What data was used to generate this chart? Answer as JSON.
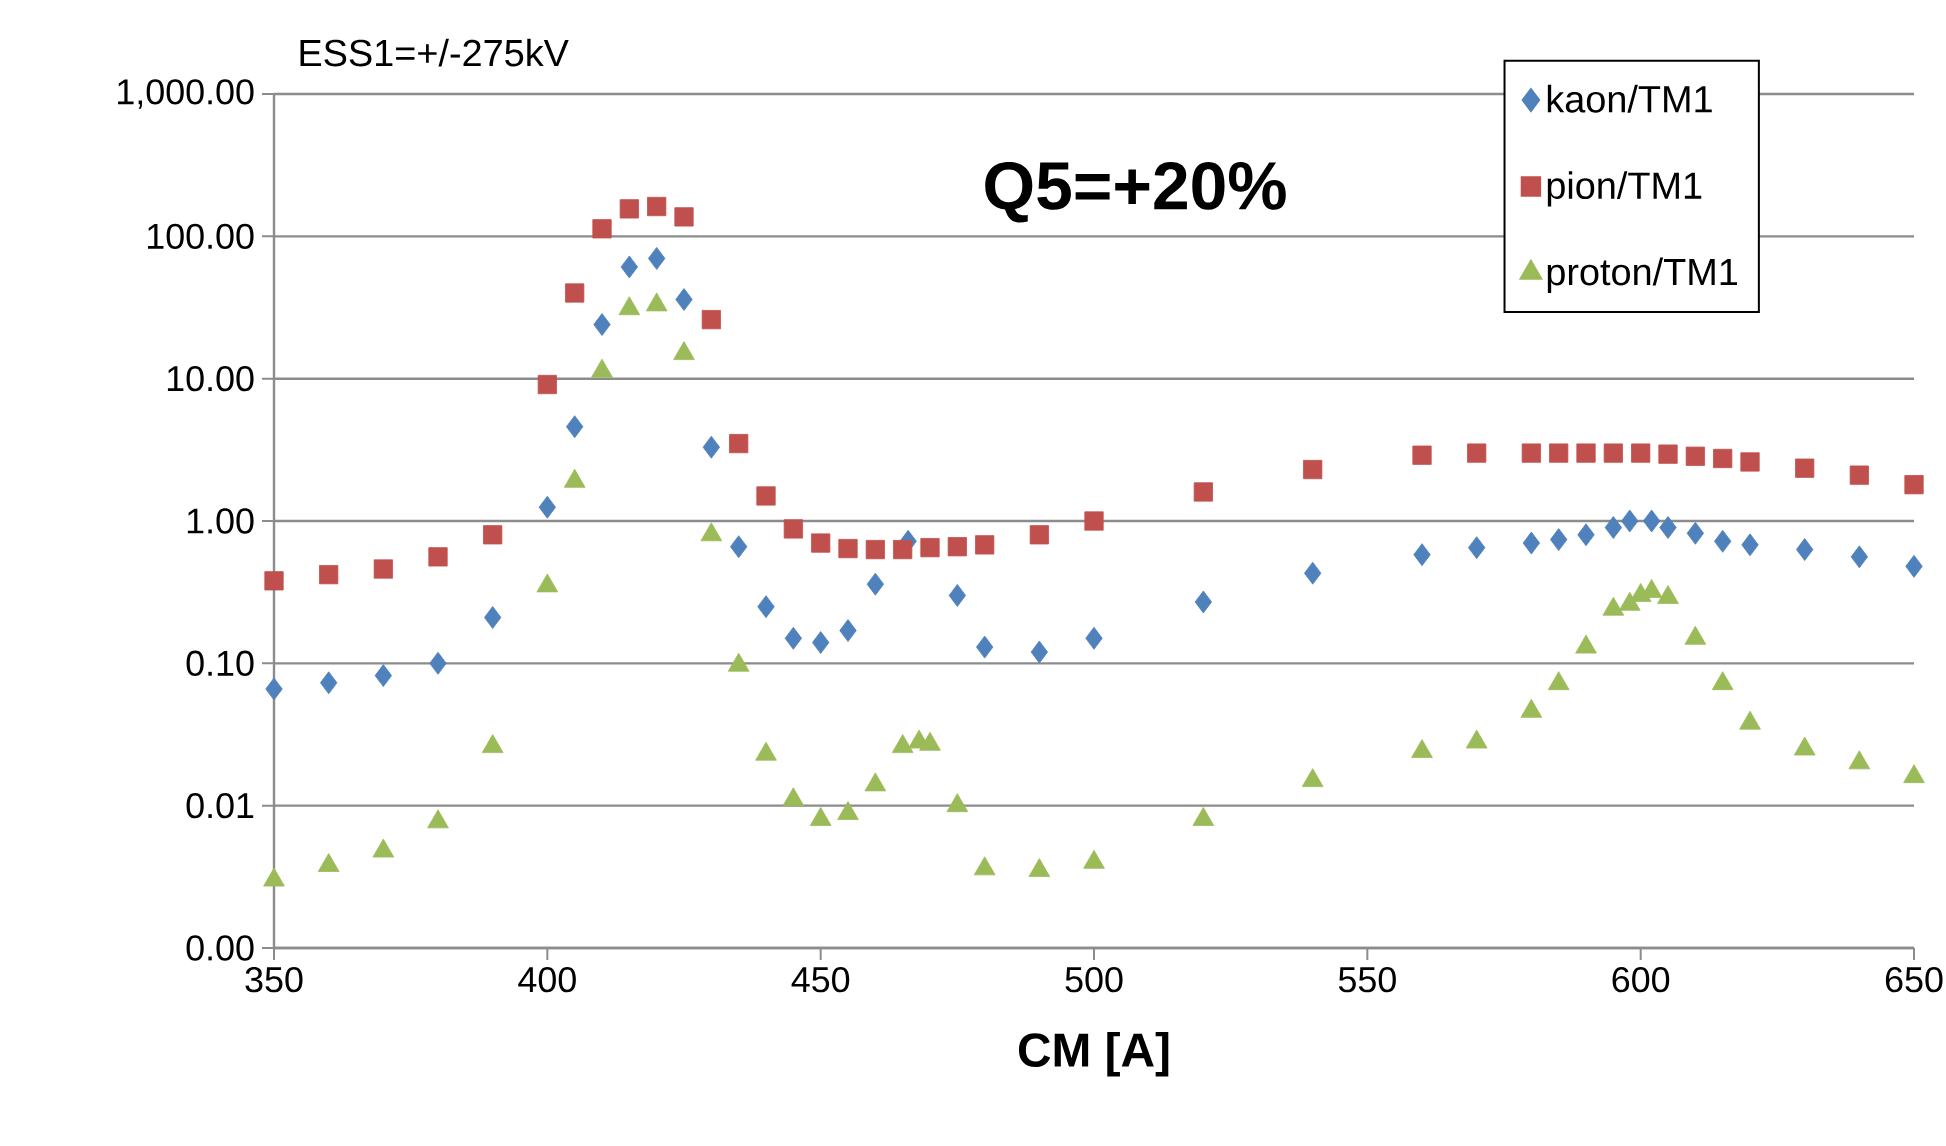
{
  "chart_data": {
    "type": "scatter",
    "title": "ESS1=+/-275kV",
    "xlabel": "CM [A]",
    "annotations": [
      "**Q5=+20%**"
    ],
    "log": "y",
    "grid": "y",
    "legend": "top right",
    "xlim": [
      350,
      650
    ],
    "xticks": [
      350,
      400,
      450,
      500,
      550,
      600,
      650
    ],
    "ylim": [
      0.001,
      1000
    ],
    "yticks": [
      {
        "value": 0.001,
        "label": "0.00"
      },
      {
        "value": 0.01,
        "label": "0.01"
      },
      {
        "value": 0.1,
        "label": "0.10"
      },
      {
        "value": 1,
        "label": "1.00"
      },
      {
        "value": 10,
        "label": "10.00"
      },
      {
        "value": 100,
        "label": "100.00"
      },
      {
        "value": 1000,
        "label": "1,000.00"
      }
    ],
    "series": [
      {
        "name": "kaon/TM1",
        "color": "#4f81bd",
        "marker": "diamond",
        "x": [
          350,
          360,
          370,
          380,
          390,
          400,
          405,
          410,
          415,
          420,
          425,
          430,
          435,
          440,
          445,
          450,
          455,
          460,
          466,
          475,
          480,
          490,
          500,
          520,
          540,
          560,
          570,
          580,
          585,
          590,
          595,
          598,
          602,
          605,
          610,
          615,
          620,
          630,
          640,
          650
        ],
        "values": [
          0.066,
          0.073,
          0.082,
          0.1,
          0.21,
          1.25,
          4.6,
          24,
          61,
          70,
          36,
          3.3,
          0.66,
          0.25,
          0.15,
          0.14,
          0.17,
          0.36,
          0.72,
          0.3,
          0.13,
          0.12,
          0.15,
          0.27,
          0.43,
          0.58,
          0.65,
          0.7,
          0.74,
          0.8,
          0.9,
          1.0,
          1.0,
          0.9,
          0.82,
          0.72,
          0.68,
          0.63,
          0.56,
          0.48
        ]
      },
      {
        "name": "pion/TM1",
        "color": "#c0504d",
        "marker": "square",
        "x": [
          350,
          360,
          370,
          380,
          390,
          400,
          405,
          410,
          415,
          420,
          425,
          430,
          435,
          440,
          445,
          450,
          455,
          460,
          465,
          470,
          475,
          480,
          490,
          500,
          520,
          540,
          560,
          570,
          580,
          585,
          590,
          595,
          600,
          605,
          610,
          615,
          620,
          630,
          640,
          650
        ],
        "values": [
          0.38,
          0.42,
          0.46,
          0.56,
          0.8,
          9.1,
          40,
          113,
          156,
          162,
          137,
          26,
          3.5,
          1.5,
          0.88,
          0.7,
          0.64,
          0.63,
          0.63,
          0.65,
          0.66,
          0.68,
          0.8,
          1.0,
          1.6,
          2.3,
          2.9,
          3.0,
          3.0,
          3.0,
          3.0,
          3.0,
          3.0,
          2.95,
          2.85,
          2.75,
          2.6,
          2.35,
          2.1,
          1.8
        ]
      },
      {
        "name": "proton/TM1",
        "color": "#9bbb59",
        "marker": "triangle",
        "x": [
          350,
          360,
          370,
          380,
          390,
          400,
          405,
          410,
          415,
          420,
          425,
          430,
          435,
          440,
          445,
          450,
          455,
          460,
          465,
          468,
          470,
          475,
          480,
          490,
          500,
          520,
          540,
          560,
          570,
          580,
          585,
          590,
          595,
          598,
          600,
          602,
          605,
          610,
          615,
          620,
          630,
          640,
          650
        ],
        "values": [
          0.003,
          0.0038,
          0.0048,
          0.0077,
          0.026,
          0.35,
          1.9,
          11.3,
          31,
          33,
          15,
          0.8,
          0.097,
          0.023,
          0.011,
          0.008,
          0.0088,
          0.014,
          0.026,
          0.028,
          0.027,
          0.01,
          0.0036,
          0.0035,
          0.004,
          0.008,
          0.015,
          0.024,
          0.028,
          0.046,
          0.072,
          0.13,
          0.24,
          0.26,
          0.3,
          0.32,
          0.29,
          0.15,
          0.072,
          0.038,
          0.025,
          0.02,
          0.016
        ]
      }
    ]
  }
}
